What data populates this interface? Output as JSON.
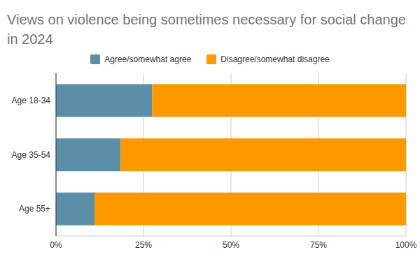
{
  "chart_data": {
    "type": "bar",
    "title": "Views on violence being sometimes necessary for social change in 2024",
    "orientation": "horizontal",
    "stacked": true,
    "grid": true,
    "legend": "top",
    "categories": [
      "Age 18-34",
      "Age 35-54",
      "Age 55+"
    ],
    "series": [
      {
        "name": "Agree/somewhat agree",
        "color": "#5b8fa8",
        "values": [
          27.5,
          18.5,
          11
        ]
      },
      {
        "name": "Disagree/somewhat disagree",
        "color": "#ff9900",
        "values": [
          72.5,
          81.5,
          89
        ]
      }
    ],
    "xlim": [
      0,
      100
    ],
    "xticks": [
      {
        "value": 0,
        "label": "0%"
      },
      {
        "value": 25,
        "label": "25%"
      },
      {
        "value": 50,
        "label": "50%"
      },
      {
        "value": 75,
        "label": "75%"
      },
      {
        "value": 100,
        "label": "100%"
      }
    ]
  }
}
